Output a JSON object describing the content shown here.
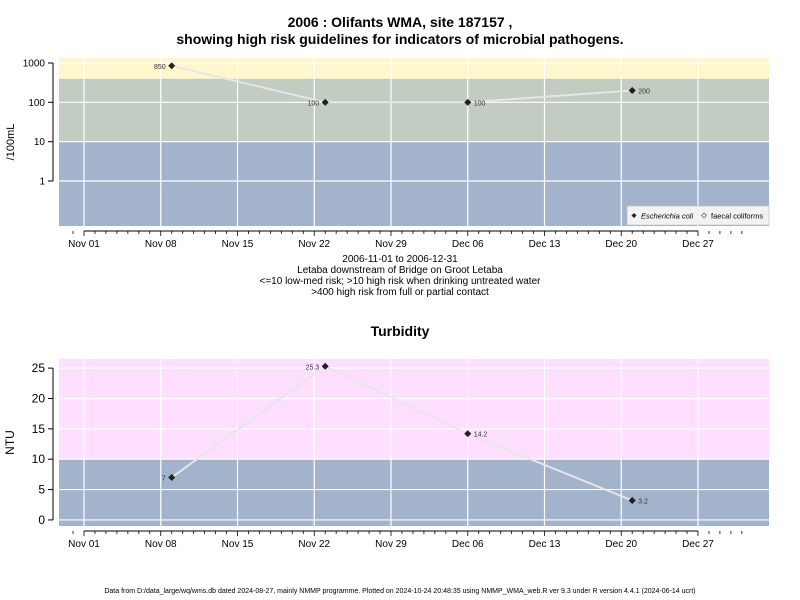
{
  "chart_data": [
    {
      "type": "scatter",
      "title_line1": "2006 : Olifants WMA, site 187157 ,",
      "title_line2": "showing high risk guidelines for indicators of microbial pathogens.",
      "ylabel": "/100mL",
      "yscale": "log",
      "y_ticks": [
        "1",
        "10",
        "100",
        "1000"
      ],
      "x_ticks": [
        "Nov 01",
        "Nov 08",
        "Nov 15",
        "Nov 22",
        "Nov 29",
        "Dec 06",
        "Dec 13",
        "Dec 20",
        "Dec 27"
      ],
      "bands": [
        {
          "from": 0,
          "to": 10,
          "color": "#a3b3cb"
        },
        {
          "from": 10,
          "to": 400,
          "color": "#c2ccc2"
        },
        {
          "from": 400,
          "to": 1000,
          "color": "#fff7cc"
        }
      ],
      "series": [
        {
          "name": "Escherichia coli",
          "points": [
            {
              "x": "2006-11-09",
              "y": 850,
              "label": "850"
            },
            {
              "x": "2006-11-23",
              "y": 100,
              "label": "100"
            },
            {
              "x": "2006-12-06",
              "y": 100,
              "label": "100"
            },
            {
              "x": "2006-12-21",
              "y": 200,
              "label": "200"
            }
          ]
        }
      ],
      "legend": {
        "position": "bottom-right",
        "entries": [
          "Escherichia coli",
          "faecal coliforms"
        ]
      },
      "caption": [
        "2006-11-01 to 2006-12-31",
        "Letaba downstream of Bridge on Groot Letaba",
        "<=10 low-med risk; >10 high risk when drinking untreated water",
        ">400 high risk from full or partial contact"
      ]
    },
    {
      "type": "scatter",
      "title": "Turbidity",
      "ylabel": "NTU",
      "ylim": [
        -1,
        26.5
      ],
      "y_ticks": [
        "0",
        "5",
        "10",
        "15",
        "20",
        "25"
      ],
      "x_ticks": [
        "Nov 01",
        "Nov 08",
        "Nov 15",
        "Nov 22",
        "Nov 29",
        "Dec 06",
        "Dec 13",
        "Dec 20",
        "Dec 27"
      ],
      "bands": [
        {
          "from": -1,
          "to": 10,
          "color": "#a3b3cb"
        },
        {
          "from": 10,
          "to": 26.5,
          "color": "#ffdfff"
        }
      ],
      "series": [
        {
          "points": [
            {
              "x": "2006-11-09",
              "y": 7,
              "label": "7"
            },
            {
              "x": "2006-11-23",
              "y": 25.3,
              "label": "25.3"
            },
            {
              "x": "2006-12-06",
              "y": 14.2,
              "label": "14.2"
            },
            {
              "x": "2006-12-21",
              "y": 3.2,
              "label": "3.2"
            }
          ]
        }
      ]
    }
  ],
  "footer": "Data from D:/data_large/wq/wms.db dated 2024-08-27, mainly NMMP programme. Plotted on 2024-10-24 20:48:35 using NMMP_WMA_web.R ver 9.3 under R version 4.4.1 (2024-06-14 ucrt)"
}
